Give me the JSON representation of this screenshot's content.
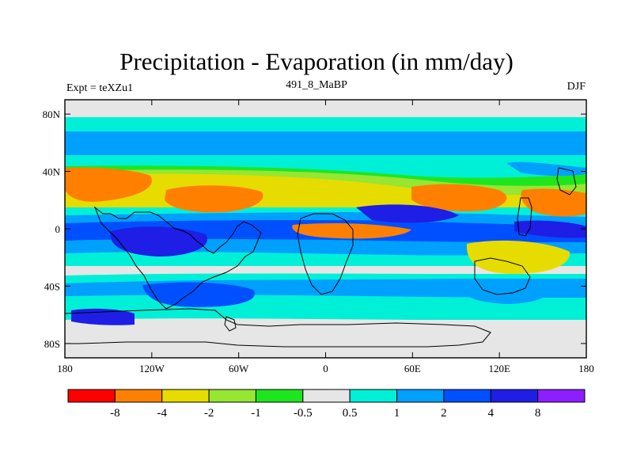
{
  "title": "Precipitation - Evaporation (in mm/day)",
  "left_label": "Expt = teXZu1",
  "center_label": "491_8_MaBP",
  "right_label": "DJF",
  "axes": {
    "x_ticks": [
      "180",
      "120W",
      "60W",
      "0",
      "60E",
      "120E",
      "180"
    ],
    "y_ticks": [
      "80N",
      "40N",
      "0",
      "40S",
      "80S"
    ]
  },
  "colorbar": {
    "colors": [
      "#ff0000",
      "#ff8000",
      "#e6dc00",
      "#96e632",
      "#1ee61e",
      "#e6e6e6",
      "#00f0d7",
      "#00a0ff",
      "#0050ff",
      "#1e1ee6",
      "#8c1eff"
    ],
    "labels": [
      "-8",
      "-4",
      "-2",
      "-1",
      "-0.5",
      "0.5",
      "1",
      "2",
      "4",
      "8"
    ]
  },
  "colors": {
    "land": "#e6e6e6",
    "strong_dry": "#ff8000",
    "dry": "#e6dc00",
    "moderate_dry": "#96e632",
    "slight_dry": "#1ee61e",
    "slight_wet": "#00f0d7",
    "wet": "#00a0ff",
    "very_wet": "#0050ff",
    "extreme_wet": "#1e1ee6",
    "max_wet": "#8c1eff"
  }
}
